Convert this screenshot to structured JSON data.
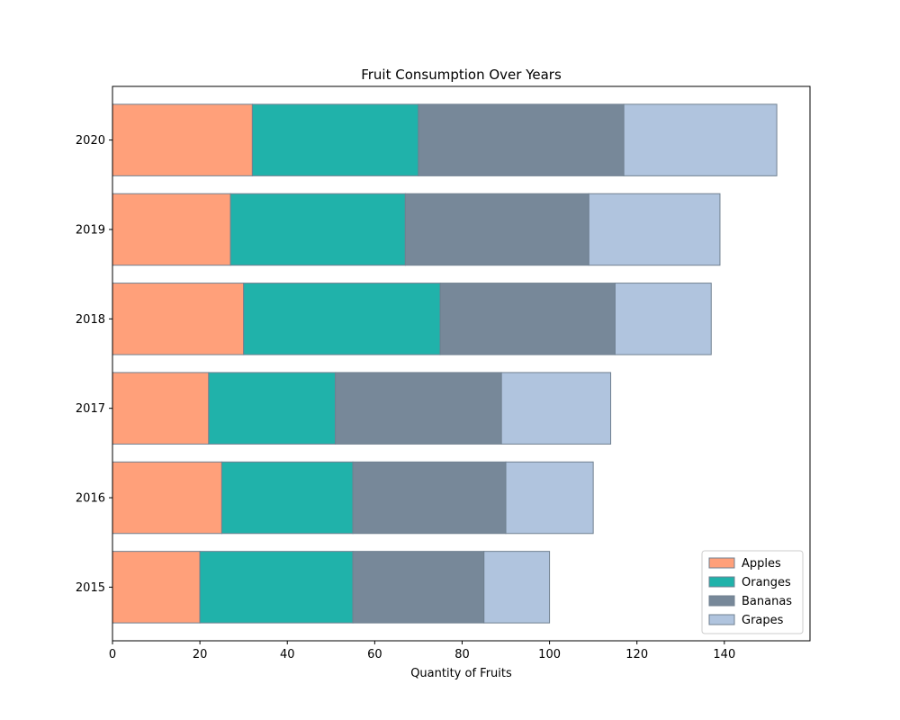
{
  "chart_data": {
    "type": "bar",
    "orientation": "horizontal",
    "stacked": true,
    "title": "Fruit Consumption Over Years",
    "xlabel": "Quantity of Fruits",
    "ylabel": "",
    "categories": [
      "2015",
      "2016",
      "2017",
      "2018",
      "2019",
      "2020"
    ],
    "series": [
      {
        "name": "Apples",
        "color": "#ffa07a",
        "values": [
          20,
          25,
          22,
          30,
          27,
          32
        ]
      },
      {
        "name": "Oranges",
        "color": "#20b2aa",
        "values": [
          35,
          30,
          29,
          45,
          40,
          38
        ]
      },
      {
        "name": "Bananas",
        "color": "#778899",
        "values": [
          30,
          35,
          38,
          40,
          42,
          47
        ]
      },
      {
        "name": "Grapes",
        "color": "#b0c4de",
        "values": [
          15,
          20,
          25,
          22,
          30,
          35
        ]
      }
    ],
    "xlim": [
      0,
      159.6
    ],
    "xticks": [
      0,
      20,
      40,
      60,
      80,
      100,
      120,
      140
    ],
    "grid": false,
    "legend_position": "lower-right",
    "edge_color": "#708090"
  }
}
